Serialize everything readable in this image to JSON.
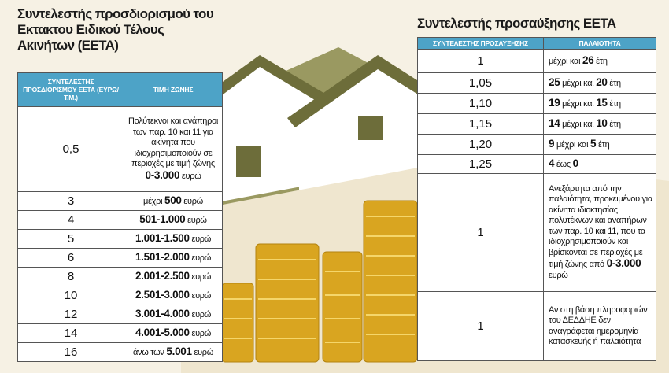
{
  "left": {
    "title": "Συντελεστής προσδιορισμού του Εκτακτου Ειδικού Τέλους Ακινήτων (ΕΕΤΑ)",
    "header": [
      "ΣΥΝΤΕΛΕΣΤΗΣ ΠΡΟΣΔΙΟΡΙΣΜΟΥ ΕΕΤΑ (ΕΥΡΩ/Τ.Μ.)",
      "ΤΙΜΗ ΖΩΝΗΣ"
    ],
    "rows": [
      {
        "factor": "0,5",
        "runs": [
          {
            "t": "Πολύτεκνοι και ανάπηροι των παρ. 10 και 11 για ακίνητα που ιδιοχρησιμοποιούν σε περιοχές με τιμή ζώνης "
          },
          {
            "t": "0-3.000",
            "bold": true
          },
          {
            "t": " ευρώ"
          }
        ]
      },
      {
        "factor": "3",
        "runs": [
          {
            "t": "μέχρι "
          },
          {
            "t": "500",
            "bold": true
          },
          {
            "t": " ευρώ"
          }
        ]
      },
      {
        "factor": "4",
        "runs": [
          {
            "t": "501-1.000",
            "bold": true
          },
          {
            "t": " ευρώ"
          }
        ]
      },
      {
        "factor": "5",
        "runs": [
          {
            "t": "1.001-1.500",
            "bold": true
          },
          {
            "t": " ευρώ"
          }
        ]
      },
      {
        "factor": "6",
        "runs": [
          {
            "t": "1.501-2.000",
            "bold": true
          },
          {
            "t": " ευρώ"
          }
        ]
      },
      {
        "factor": "8",
        "runs": [
          {
            "t": "2.001-2.500",
            "bold": true
          },
          {
            "t": " ευρώ"
          }
        ]
      },
      {
        "factor": "10",
        "runs": [
          {
            "t": "2.501-3.000",
            "bold": true
          },
          {
            "t": " ευρώ"
          }
        ]
      },
      {
        "factor": "12",
        "runs": [
          {
            "t": "3.001-4.000",
            "bold": true
          },
          {
            "t": " ευρώ"
          }
        ]
      },
      {
        "factor": "14",
        "runs": [
          {
            "t": "4.001-5.000",
            "bold": true
          },
          {
            "t": " ευρώ"
          }
        ]
      },
      {
        "factor": "16",
        "runs": [
          {
            "t": "άνω των "
          },
          {
            "t": "5.001",
            "bold": true
          },
          {
            "t": " ευρώ"
          }
        ]
      }
    ]
  },
  "right": {
    "title": "Συντελεστής προσαύξησης ΕΕΤΑ",
    "header": [
      "ΣΥΝΤΕΛΕΣΤΗΣ ΠΡΟΣΑΥΞΗΣΗΣ",
      "ΠΑΛΑΙΟΤΗΤΑ"
    ],
    "rows": [
      {
        "factor": "1",
        "runs": [
          {
            "t": "μέχρι και "
          },
          {
            "t": "26",
            "bold": true
          },
          {
            "t": " έτη"
          }
        ]
      },
      {
        "factor": "1,05",
        "runs": [
          {
            "t": "25",
            "bold": true
          },
          {
            "t": " μέχρι και "
          },
          {
            "t": "20",
            "bold": true
          },
          {
            "t": " έτη"
          }
        ]
      },
      {
        "factor": "1,10",
        "runs": [
          {
            "t": "19",
            "bold": true
          },
          {
            "t": " μέχρι και "
          },
          {
            "t": "15",
            "bold": true
          },
          {
            "t": " έτη"
          }
        ]
      },
      {
        "factor": "1,15",
        "runs": [
          {
            "t": "14",
            "bold": true
          },
          {
            "t": " μέχρι και "
          },
          {
            "t": "10",
            "bold": true
          },
          {
            "t": " έτη"
          }
        ]
      },
      {
        "factor": "1,20",
        "runs": [
          {
            "t": "9",
            "bold": true
          },
          {
            "t": " μέχρι και "
          },
          {
            "t": "5",
            "bold": true
          },
          {
            "t": " έτη"
          }
        ]
      },
      {
        "factor": "1,25",
        "runs": [
          {
            "t": "4",
            "bold": true
          },
          {
            "t": " έως "
          },
          {
            "t": "0",
            "bold": true
          }
        ]
      },
      {
        "factor": "1",
        "runs": [
          {
            "t": "Ανεξάρτητα από την παλαιότητα, προκειμένου για ακίνητα ιδιοκτησίας πολυτέκνων και αναπήρων των παρ. 10 και 11, που τα ιδιοχρησιμοποιούν και βρίσκονται σε περιοχές με τιμή ζώνης από "
          },
          {
            "t": "0-3.000",
            "bold": true
          },
          {
            "t": " ευρώ"
          }
        ]
      },
      {
        "factor": "1",
        "runs": [
          {
            "t": "Αν στη βάση πληροφοριών του ΔΕΔΔΗΕ δεν αναγράφεται ημερομηνία κατασκευής ή παλαιότητα"
          }
        ]
      }
    ]
  }
}
